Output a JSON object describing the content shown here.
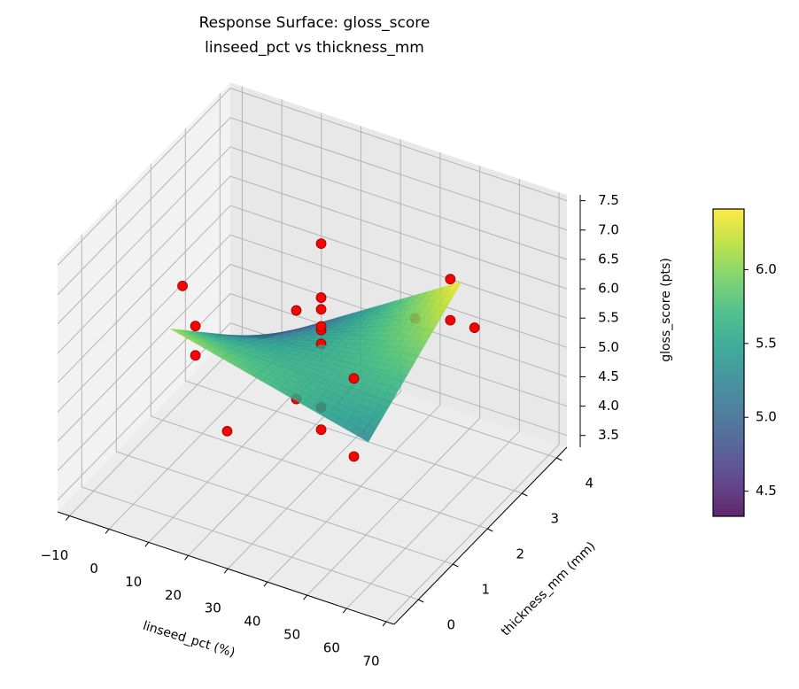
{
  "chart_data": {
    "type": "surface3d",
    "title": "Response Surface: gloss_score",
    "subtitle": "linseed_pct vs thickness_mm",
    "xlabel": "linseed_pct (%)",
    "ylabel": "thickness_mm (mm)",
    "zlabel": "gloss_score (pts)",
    "xlim": [
      -13,
      72
    ],
    "ylim": [
      -0.7,
      4.3
    ],
    "zlim": [
      3.3,
      7.6
    ],
    "xticks": [
      "−10",
      "0",
      "10",
      "20",
      "30",
      "40",
      "50",
      "60",
      "70"
    ],
    "xtick_values": [
      -10,
      0,
      10,
      20,
      30,
      40,
      50,
      60,
      70
    ],
    "yticks": [
      "0",
      "1",
      "2",
      "3",
      "4"
    ],
    "ytick_values": [
      0,
      1,
      2,
      3,
      4
    ],
    "zticks": [
      "3.5",
      "4.0",
      "4.5",
      "5.0",
      "5.5",
      "6.0",
      "6.5",
      "7.0",
      "7.5"
    ],
    "ztick_values": [
      3.5,
      4.0,
      4.5,
      5.0,
      5.5,
      6.0,
      6.5,
      7.0,
      7.5
    ],
    "grid": true,
    "view": {
      "elev": 30,
      "azim": -60
    },
    "surface": {
      "x_range": [
        5,
        55
      ],
      "y_range": [
        0.5,
        3.2
      ],
      "z_corners": {
        "xmin_ymin": 6.1,
        "xmax_ymin": 5.3,
        "xmin_ymax": 4.3,
        "xmax_ymax": 6.4
      },
      "colormap": "viridis",
      "alpha": 0.85
    },
    "points": [
      [
        -5,
        2,
        5.7
      ],
      [
        0,
        1.8,
        5.25
      ],
      [
        0,
        1.8,
        4.75
      ],
      [
        15,
        1,
        4.28
      ],
      [
        15,
        3,
        5.13
      ],
      [
        15,
        3,
        3.62
      ],
      [
        30,
        2,
        7.21
      ],
      [
        30,
        2,
        6.29
      ],
      [
        30,
        2,
        6.09
      ],
      [
        30,
        2,
        5.8
      ],
      [
        30,
        2,
        5.74
      ],
      [
        30,
        2,
        5.5
      ],
      [
        30,
        2,
        4.42
      ],
      [
        30,
        2,
        4.04
      ],
      [
        47,
        1,
        5.9
      ],
      [
        47,
        1,
        4.57
      ],
      [
        45,
        3,
        5.67
      ],
      [
        60,
        2.3,
        7.1
      ],
      [
        60,
        2.3,
        6.4
      ],
      [
        60,
        3,
        5.85
      ]
    ],
    "point_color": "#ff0000",
    "point_edge_color": "#8b0000",
    "colorbar": {
      "range": [
        4.33,
        6.41
      ],
      "ticks": [
        "4.5",
        "5.0",
        "5.5",
        "6.0"
      ],
      "tick_values": [
        4.5,
        5.0,
        5.5,
        6.0
      ]
    }
  }
}
